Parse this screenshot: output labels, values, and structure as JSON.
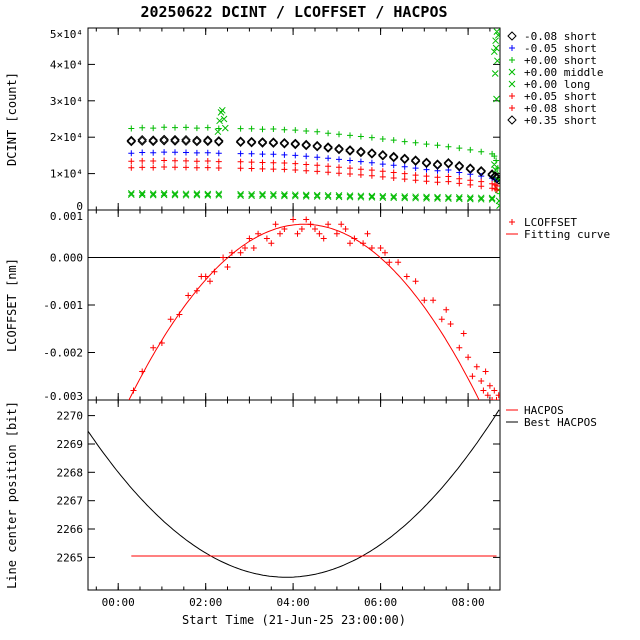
{
  "title": "20250622 DCINT / LCOFFSET / HACPOS",
  "xlabel": "Start Time (21-Jun-25 23:00:00)",
  "colors": {
    "black": "#000000",
    "blue": "#0000ff",
    "green": "#00bb00",
    "red": "#ff0000"
  },
  "axes": {
    "x_range": [
      -0.69,
      8.73
    ],
    "x_ticks": [
      {
        "value": 0,
        "label": "00:00"
      },
      {
        "value": 2,
        "label": "02:00"
      },
      {
        "value": 4,
        "label": "04:00"
      },
      {
        "value": 6,
        "label": "06:00"
      },
      {
        "value": 8,
        "label": "08:00"
      }
    ]
  },
  "chart_data": [
    {
      "name": "DCINT",
      "type": "scatter",
      "ylabel": "DCINT [count]",
      "ylim": [
        0,
        50000
      ],
      "yticks": [
        {
          "value": 0,
          "label": "0"
        },
        {
          "value": 10000,
          "label": "1×10⁴"
        },
        {
          "value": 20000,
          "label": "2×10⁴"
        },
        {
          "value": 30000,
          "label": "3×10⁴"
        },
        {
          "value": 40000,
          "label": "4×10⁴"
        },
        {
          "value": 50000,
          "label": "5×10⁴"
        }
      ],
      "x_start": 0.3,
      "x_step": 0.25,
      "series": [
        {
          "label": "-0.08 short",
          "color": "black",
          "marker": "diamond",
          "y": [
            19100,
            19300,
            19200,
            19400,
            19350,
            19300,
            19150,
            19200,
            19000,
            null,
            18900,
            18800,
            18700,
            18650,
            18500,
            18300,
            18000,
            17700,
            17300,
            16900,
            16500,
            16100,
            15700,
            15200,
            14700,
            14200,
            13700,
            13100,
            12600,
            13000,
            12200,
            11500,
            10800,
            9900
          ],
          "extra": [
            [
              8.62,
              9400
            ],
            [
              8.66,
              8900
            ],
            [
              8.7,
              8300
            ]
          ]
        },
        {
          "label": "-0.05 short",
          "color": "blue",
          "marker": "plus",
          "y": [
            15600,
            15800,
            15750,
            15900,
            15850,
            15800,
            15700,
            15750,
            15600,
            null,
            15500,
            15450,
            15350,
            15300,
            15150,
            15000,
            14750,
            14500,
            14200,
            13900,
            13600,
            13300,
            13000,
            12600,
            12300,
            11900,
            11500,
            11100,
            10800,
            11000,
            10300,
            9800,
            9300,
            8700
          ],
          "extra": [
            [
              8.62,
              8300
            ],
            [
              8.66,
              7900
            ]
          ]
        },
        {
          "label": "+0.00 short",
          "color": "green",
          "marker": "plus",
          "y": [
            22400,
            22600,
            22500,
            22750,
            22650,
            22700,
            22500,
            22650,
            22400,
            null,
            22350,
            22300,
            22200,
            22250,
            22050,
            21950,
            21700,
            21500,
            21100,
            20800,
            20500,
            20200,
            19900,
            19500,
            19200,
            18800,
            18500,
            18100,
            17800,
            17400,
            17000,
            16500,
            16000,
            15400
          ],
          "extra": [
            [
              8.6,
              14800
            ],
            [
              8.64,
              13600
            ],
            [
              8.68,
              11500
            ],
            [
              8.7,
              8500
            ],
            [
              8.72,
              4500
            ]
          ]
        },
        {
          "label": "+0.00 middle",
          "color": "green",
          "marker": "x",
          "y": [
            4600,
            4550,
            4500,
            4550,
            4500,
            4450,
            4500,
            4400,
            4450,
            null,
            4350,
            4300,
            4350,
            4300,
            4250,
            4200,
            4150,
            4100,
            4050,
            4000,
            3950,
            3900,
            3850,
            3800,
            3750,
            3700,
            3650,
            3600,
            3550,
            3500,
            3450,
            3400,
            3350,
            3300
          ],
          "extra": [
            [
              2.28,
              21500
            ],
            [
              2.32,
              24500
            ],
            [
              2.35,
              26800
            ],
            [
              2.38,
              27400
            ],
            [
              2.42,
              25000
            ],
            [
              2.45,
              22500
            ],
            [
              8.6,
              43500
            ],
            [
              8.62,
              37500
            ],
            [
              8.63,
              46500
            ],
            [
              8.64,
              44500
            ],
            [
              8.65,
              30500
            ],
            [
              8.66,
              49000
            ],
            [
              8.67,
              41000
            ],
            [
              8.69,
              48000
            ]
          ]
        },
        {
          "label": "+0.00 long",
          "color": "green",
          "marker": "x",
          "y": [
            4200,
            4150,
            4100,
            4150,
            4100,
            4050,
            4100,
            4000,
            4050,
            null,
            3950,
            3900,
            3950,
            3900,
            3850,
            3800,
            3750,
            3700,
            3650,
            3600,
            3550,
            3500,
            3450,
            3400,
            3350,
            3300,
            3250,
            3200,
            3150,
            3100,
            3050,
            3000,
            2950,
            2900
          ],
          "extra": [
            [
              8.6,
              12500
            ],
            [
              8.63,
              11000
            ],
            [
              8.66,
              8500
            ],
            [
              8.69,
              5500
            ],
            [
              8.71,
              2500
            ],
            [
              8.72,
              1200
            ]
          ]
        },
        {
          "label": "+0.05 short",
          "color": "red",
          "marker": "plus",
          "y": [
            13400,
            13500,
            13450,
            13600,
            13550,
            13500,
            13400,
            13450,
            13300,
            null,
            13250,
            13150,
            13050,
            13000,
            12900,
            12750,
            12500,
            12300,
            12000,
            11750,
            11500,
            11200,
            10950,
            10650,
            10300,
            10000,
            9600,
            9300,
            9000,
            9200,
            8600,
            8200,
            7800,
            7200
          ],
          "extra": [
            [
              8.62,
              6900
            ],
            [
              8.66,
              6600
            ]
          ]
        },
        {
          "label": "+0.08 short",
          "color": "red",
          "marker": "plus",
          "y": [
            11600,
            11700,
            11650,
            11800,
            11750,
            11700,
            11600,
            11650,
            11550,
            null,
            11450,
            11400,
            11300,
            11250,
            11150,
            11000,
            10800,
            10600,
            10350,
            10100,
            9900,
            9650,
            9400,
            9100,
            8800,
            8500,
            8200,
            7900,
            7650,
            7800,
            7300,
            6900,
            6500,
            6000
          ],
          "extra": [
            [
              8.62,
              5800
            ],
            [
              8.66,
              5500
            ]
          ]
        },
        {
          "label": "+0.35 short",
          "color": "black",
          "marker": "diamond",
          "y": [
            18800,
            18900,
            18850,
            19000,
            18950,
            18900,
            18800,
            18850,
            18700,
            null,
            18600,
            18500,
            18400,
            18350,
            18200,
            18000,
            17700,
            17400,
            17000,
            16600,
            16200,
            15800,
            15400,
            14900,
            14400,
            13900,
            13400,
            12800,
            12300,
            12700,
            11900,
            11200,
            10500,
            9600
          ],
          "extra": [
            [
              8.62,
              9100
            ],
            [
              8.66,
              8600
            ]
          ]
        }
      ]
    },
    {
      "name": "LCOFFSET",
      "type": "scatter_fit",
      "ylabel": "LCOFFSET [nm]",
      "ylim": [
        -0.003,
        0.001
      ],
      "yticks": [
        {
          "value": 0.001,
          "label": "0.001"
        },
        {
          "value": 0.0,
          "label": "0.000"
        },
        {
          "value": -0.001,
          "label": "-0.001"
        },
        {
          "value": -0.002,
          "label": "-0.002"
        },
        {
          "value": -0.003,
          "label": "-0.003"
        }
      ],
      "zero_line": 0.0,
      "points": [
        [
          0.35,
          -0.0028
        ],
        [
          0.55,
          -0.0024
        ],
        [
          0.8,
          -0.0019
        ],
        [
          1.0,
          -0.0018
        ],
        [
          1.2,
          -0.0013
        ],
        [
          1.4,
          -0.0012
        ],
        [
          1.6,
          -0.0008
        ],
        [
          1.8,
          -0.0007
        ],
        [
          1.9,
          -0.0004
        ],
        [
          2.0,
          -0.0004
        ],
        [
          2.1,
          -0.0005
        ],
        [
          2.2,
          -0.0003
        ],
        [
          2.4,
          0.0
        ],
        [
          2.5,
          -0.0002
        ],
        [
          2.6,
          0.0001
        ],
        [
          2.8,
          0.0001
        ],
        [
          2.9,
          0.0002
        ],
        [
          3.0,
          0.0004
        ],
        [
          3.1,
          0.0002
        ],
        [
          3.2,
          0.0005
        ],
        [
          3.4,
          0.0004
        ],
        [
          3.5,
          0.0003
        ],
        [
          3.6,
          0.0007
        ],
        [
          3.7,
          0.0005
        ],
        [
          3.8,
          0.0006
        ],
        [
          4.0,
          0.0008
        ],
        [
          4.1,
          0.0005
        ],
        [
          4.2,
          0.0006
        ],
        [
          4.3,
          0.0008
        ],
        [
          4.4,
          0.0007
        ],
        [
          4.5,
          0.0006
        ],
        [
          4.6,
          0.0005
        ],
        [
          4.7,
          0.0004
        ],
        [
          4.8,
          0.0007
        ],
        [
          5.0,
          0.0005
        ],
        [
          5.1,
          0.0007
        ],
        [
          5.2,
          0.0006
        ],
        [
          5.3,
          0.0003
        ],
        [
          5.4,
          0.0004
        ],
        [
          5.6,
          0.0003
        ],
        [
          5.7,
          0.0005
        ],
        [
          5.8,
          0.0002
        ],
        [
          6.0,
          0.0002
        ],
        [
          6.1,
          0.0001
        ],
        [
          6.2,
          -0.0001
        ],
        [
          6.4,
          -0.0001
        ],
        [
          6.6,
          -0.0004
        ],
        [
          6.8,
          -0.0005
        ],
        [
          7.0,
          -0.0009
        ],
        [
          7.2,
          -0.0009
        ],
        [
          7.4,
          -0.0013
        ],
        [
          7.5,
          -0.0011
        ],
        [
          7.6,
          -0.0014
        ],
        [
          7.8,
          -0.0019
        ],
        [
          7.9,
          -0.0016
        ],
        [
          8.0,
          -0.0021
        ],
        [
          8.1,
          -0.0025
        ],
        [
          8.2,
          -0.0023
        ],
        [
          8.3,
          -0.0026
        ],
        [
          8.35,
          -0.0028
        ],
        [
          8.4,
          -0.0024
        ],
        [
          8.45,
          -0.0029
        ],
        [
          8.5,
          -0.0027
        ],
        [
          8.55,
          -0.003
        ],
        [
          8.6,
          -0.0028
        ],
        [
          8.65,
          -0.003
        ],
        [
          8.7,
          -0.0029
        ]
      ],
      "fit": {
        "vertex_x": 4.25,
        "vertex_y": 0.0007,
        "coeff": -0.000231
      },
      "legend": [
        {
          "label": "LCOFFSET",
          "color": "red",
          "marker": "plus"
        },
        {
          "label": "Fitting curve",
          "color": "red",
          "marker": "line"
        }
      ]
    },
    {
      "name": "HACPOS",
      "type": "lines",
      "ylabel": "Line center position [bit]",
      "ylim": [
        2263.85,
        2270.55
      ],
      "yticks": [
        {
          "value": 2265,
          "label": "2265"
        },
        {
          "value": 2266,
          "label": "2266"
        },
        {
          "value": 2267,
          "label": "2267"
        },
        {
          "value": 2268,
          "label": "2268"
        },
        {
          "value": 2269,
          "label": "2269"
        },
        {
          "value": 2270,
          "label": "2270"
        }
      ],
      "hacpos": {
        "y": 2265.05,
        "x0": 0.3,
        "x1": 8.65,
        "color": "red"
      },
      "best": {
        "vertex_x": 3.85,
        "vertex_y": 2264.3,
        "coeff": 0.25,
        "color": "black"
      },
      "legend": [
        {
          "label": "HACPOS",
          "color": "red",
          "marker": "line"
        },
        {
          "label": "Best HACPOS",
          "color": "black",
          "marker": "line"
        }
      ]
    }
  ]
}
